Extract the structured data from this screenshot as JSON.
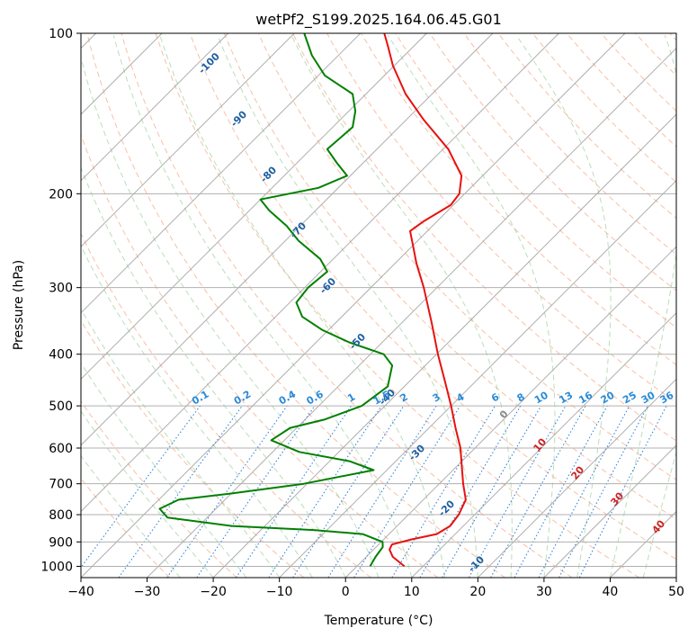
{
  "chart_data": {
    "type": "line",
    "subtype": "skew-t log-p",
    "title": "wetPf2_S199.2025.164.06.45.G01",
    "xlabel": "Temperature (°C)",
    "ylabel": "Pressure (hPa)",
    "xlim": [
      -40,
      50
    ],
    "ylim": [
      1050,
      100
    ],
    "yscale": "log",
    "x_ticks": [
      "−40",
      "−30",
      "−20",
      "−10",
      "0",
      "10",
      "20",
      "30",
      "40",
      "50"
    ],
    "x_tick_values": [
      -40,
      -30,
      -20,
      -10,
      0,
      10,
      20,
      30,
      40,
      50
    ],
    "y_ticks": [
      "100",
      "200",
      "300",
      "400",
      "500",
      "600",
      "700",
      "800",
      "900",
      "1000"
    ],
    "y_tick_values": [
      100,
      200,
      300,
      400,
      500,
      600,
      700,
      800,
      900,
      1000
    ],
    "grid": true,
    "series": [
      {
        "color": "#e8110e",
        "points": [
          [
            1000,
            7.2
          ],
          [
            960,
            4.0
          ],
          [
            930,
            2.4
          ],
          [
            910,
            2.0
          ],
          [
            890,
            4.2
          ],
          [
            870,
            7.2
          ],
          [
            840,
            8.0
          ],
          [
            800,
            7.6
          ],
          [
            750,
            6.4
          ],
          [
            700,
            3.6
          ],
          [
            650,
            0.8
          ],
          [
            600,
            -2.2
          ],
          [
            550,
            -6.0
          ],
          [
            500,
            -10.0
          ],
          [
            450,
            -14.6
          ],
          [
            400,
            -19.8
          ],
          [
            350,
            -25.4
          ],
          [
            300,
            -32.0
          ],
          [
            270,
            -36.8
          ],
          [
            250,
            -40.0
          ],
          [
            235,
            -42.6
          ],
          [
            225,
            -42.0
          ],
          [
            210,
            -40.4
          ],
          [
            200,
            -40.8
          ],
          [
            185,
            -43.2
          ],
          [
            165,
            -49.2
          ],
          [
            145,
            -57.5
          ],
          [
            130,
            -64.0
          ],
          [
            115,
            -70.2
          ],
          [
            105,
            -74.2
          ],
          [
            100,
            -76.4
          ]
        ]
      },
      {
        "color": "#008000",
        "points": [
          [
            1000,
            2.0
          ],
          [
            960,
            1.4
          ],
          [
            920,
            1.0
          ],
          [
            900,
            0.2
          ],
          [
            870,
            -4.0
          ],
          [
            855,
            -12.0
          ],
          [
            840,
            -25.0
          ],
          [
            810,
            -36.0
          ],
          [
            780,
            -38.5
          ],
          [
            750,
            -37.0
          ],
          [
            730,
            -30.0
          ],
          [
            700,
            -20.5
          ],
          [
            660,
            -12.0
          ],
          [
            635,
            -17.0
          ],
          [
            610,
            -26.0
          ],
          [
            580,
            -32.0
          ],
          [
            550,
            -31.0
          ],
          [
            530,
            -27.0
          ],
          [
            500,
            -23.5
          ],
          [
            460,
            -22.5
          ],
          [
            420,
            -25.0
          ],
          [
            400,
            -28.0
          ],
          [
            380,
            -35.0
          ],
          [
            360,
            -41.0
          ],
          [
            340,
            -46.0
          ],
          [
            320,
            -49.0
          ],
          [
            300,
            -49.5
          ],
          [
            280,
            -49.0
          ],
          [
            265,
            -52.0
          ],
          [
            245,
            -58.0
          ],
          [
            230,
            -62.0
          ],
          [
            215,
            -67.0
          ],
          [
            205,
            -70.0
          ],
          [
            195,
            -63.0
          ],
          [
            185,
            -60.5
          ],
          [
            175,
            -64.0
          ],
          [
            165,
            -67.5
          ],
          [
            150,
            -67.0
          ],
          [
            140,
            -69.0
          ],
          [
            130,
            -72.0
          ],
          [
            120,
            -79.0
          ],
          [
            110,
            -84.0
          ],
          [
            100,
            -88.5
          ]
        ]
      }
    ],
    "dry_adiabat_labels": [
      "-100",
      "-90",
      "-80",
      "-70",
      "-60",
      "-50",
      "-40",
      "-30",
      "-20",
      "-10"
    ],
    "dry_adiabat_label_values": [
      -100,
      -90,
      -80,
      -70,
      -60,
      -50,
      -40,
      -30,
      -20,
      -10
    ],
    "mixing_ratio_labels": [
      "0.1",
      "0.2",
      "0.4",
      "0.6",
      "1",
      "1.5",
      "2",
      "3",
      "4",
      "6",
      "8",
      "10",
      "13",
      "16",
      "20",
      "25",
      "30",
      "36"
    ],
    "mixing_ratio_values": [
      0.1,
      0.2,
      0.4,
      0.6,
      1,
      1.5,
      2,
      3,
      4,
      6,
      8,
      10,
      13,
      16,
      20,
      25,
      30,
      36
    ],
    "moist_adiabat_labels": [
      "0",
      "10",
      "20",
      "30",
      "40"
    ],
    "moist_adiabat_values": [
      0,
      10,
      20,
      30,
      40
    ],
    "colors": {
      "isotherm": "#9a9a9a",
      "isobar": "#b0b0b0",
      "dry_adiabat": "#f4a582",
      "moist_adiabat": "#8cc88c",
      "mixing_ratio": "#1f78d8",
      "dry_label": "#1f5fa0",
      "mixing_label": "#2a8ad8",
      "moist_label": "#cc2222"
    }
  }
}
